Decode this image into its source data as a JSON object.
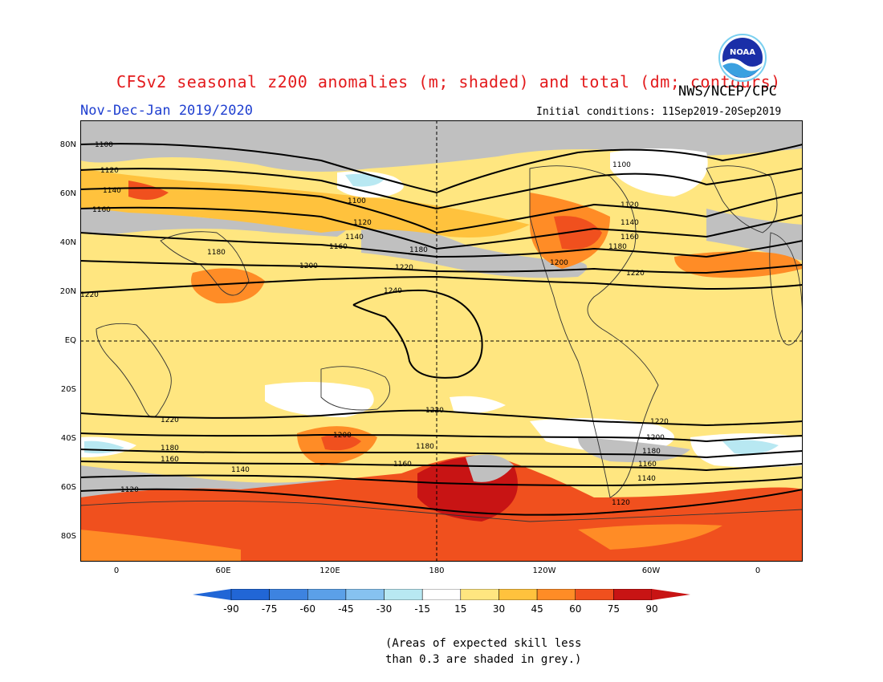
{
  "title": "CFSv2 seasonal z200 anomalies (m; shaded) and total (dm; contours)",
  "agency": "NWS/NCEP/CPC",
  "logo_text": "NOAA",
  "period": "Nov-Dec-Jan 2019/2020",
  "initial_conditions": "Initial conditions: 11Sep2019-20Sep2019",
  "lat_labels": [
    "80N",
    "60N",
    "40N",
    "20N",
    "EQ",
    "20S",
    "40S",
    "60S",
    "80S"
  ],
  "lon_labels": [
    "0",
    "60E",
    "120E",
    "180",
    "120W",
    "60W",
    "0"
  ],
  "colorbar": {
    "labels": [
      "-90",
      "-75",
      "-60",
      "-45",
      "-30",
      "-15",
      "15",
      "30",
      "45",
      "60",
      "75",
      "90"
    ],
    "colors": [
      "#2166d6",
      "#3d83e0",
      "#5ba0e8",
      "#86c2f0",
      "#b8e8f2",
      "#ffffff",
      "#ffe680",
      "#ffc23d",
      "#ff8c26",
      "#f0501e",
      "#c81414"
    ]
  },
  "contour_labels": [
    "1100",
    "1120",
    "1140",
    "1160",
    "1180",
    "1200",
    "1220",
    "1240"
  ],
  "note": [
    "(Areas of expected skill less",
    "than 0.3 are shaded in grey.)"
  ],
  "map_colors": {
    "grey": "#c0c0c0",
    "light_yellow": "#ffe680",
    "orange_light": "#ffc23d",
    "orange": "#ff8c26",
    "red": "#f0501e",
    "dark_red": "#c81414",
    "light_blue": "#b8e8f2",
    "white": "#ffffff"
  }
}
